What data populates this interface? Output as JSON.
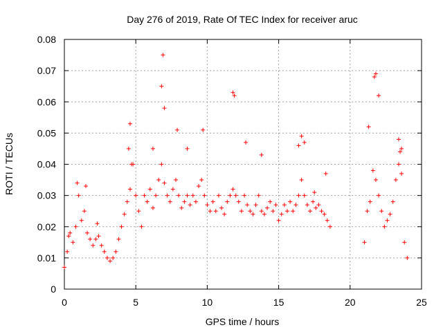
{
  "chart_data": {
    "type": "scatter",
    "title": "Day 276 of 2019, Rate Of TEC Index for receiver aruc",
    "xlabel": "GPS time / hours",
    "ylabel": "ROTI / TECUs",
    "xlim": [
      0,
      25
    ],
    "ylim": [
      0,
      0.08
    ],
    "x_ticks": [
      "0",
      "5",
      "10",
      "15",
      "20",
      "25"
    ],
    "y_ticks": [
      "0",
      "0.01",
      "0.02",
      "0.03",
      "0.04",
      "0.05",
      "0.06",
      "0.07",
      "0.08"
    ],
    "grid": true,
    "marker": "+",
    "color": "#ff0000",
    "series": [
      {
        "x": [
          0.0,
          0.2,
          0.4,
          0.6,
          0.8,
          1.0,
          1.2,
          1.4,
          1.6,
          1.8,
          2.0,
          2.2,
          2.4,
          2.6,
          2.8,
          3.0,
          3.2,
          3.4,
          3.6,
          3.8,
          4.0,
          4.2,
          4.4,
          4.6,
          4.8,
          5.0,
          5.2,
          5.4,
          5.6,
          5.8,
          6.0,
          6.2,
          6.4,
          6.6,
          6.8,
          7.0,
          7.2,
          7.4,
          7.6,
          7.8,
          8.0,
          8.2,
          8.4,
          8.6,
          8.8,
          9.0,
          9.2,
          9.4,
          9.6,
          9.8,
          10.0,
          10.2,
          10.4,
          10.6,
          10.8,
          11.0,
          11.2,
          11.4,
          11.6,
          11.8,
          12.0,
          12.2,
          12.4,
          12.6,
          12.8,
          13.0,
          13.2,
          13.4,
          13.6,
          13.8,
          14.0,
          14.2,
          14.4,
          14.6,
          14.8,
          15.0,
          15.2,
          15.4,
          15.6,
          15.8,
          16.0,
          16.2,
          16.4,
          16.6,
          16.8,
          17.0,
          17.2,
          17.4,
          17.6,
          17.8,
          18.0,
          18.2,
          18.4,
          18.6,
          21.0,
          21.2,
          21.4,
          21.6,
          21.8,
          22.0,
          22.2,
          22.4,
          22.6,
          22.8,
          23.0,
          23.2,
          23.4,
          23.6,
          23.8,
          24.0,
          0.3,
          0.9,
          1.5,
          2.3,
          4.5,
          4.6,
          4.7,
          6.2,
          6.8,
          6.9,
          7.0,
          7.9,
          8.6,
          9.7,
          11.8,
          11.9,
          12.7,
          13.8,
          16.4,
          16.6,
          16.8,
          17.5,
          18.3,
          21.3,
          21.7,
          21.8,
          22.0,
          23.4,
          23.5,
          23.6
        ],
        "y": [
          0.007,
          0.012,
          0.018,
          0.015,
          0.02,
          0.03,
          0.022,
          0.025,
          0.018,
          0.016,
          0.014,
          0.016,
          0.017,
          0.014,
          0.012,
          0.01,
          0.009,
          0.01,
          0.012,
          0.016,
          0.02,
          0.024,
          0.028,
          0.032,
          0.04,
          0.03,
          0.025,
          0.02,
          0.03,
          0.028,
          0.032,
          0.026,
          0.03,
          0.035,
          0.04,
          0.034,
          0.03,
          0.028,
          0.032,
          0.035,
          0.03,
          0.026,
          0.028,
          0.03,
          0.027,
          0.03,
          0.028,
          0.033,
          0.035,
          0.03,
          0.027,
          0.025,
          0.028,
          0.025,
          0.03,
          0.026,
          0.024,
          0.028,
          0.03,
          0.032,
          0.03,
          0.028,
          0.025,
          0.03,
          0.027,
          0.025,
          0.024,
          0.027,
          0.03,
          0.025,
          0.024,
          0.026,
          0.028,
          0.025,
          0.027,
          0.022,
          0.024,
          0.027,
          0.025,
          0.028,
          0.025,
          0.027,
          0.03,
          0.035,
          0.03,
          0.027,
          0.025,
          0.028,
          0.026,
          0.027,
          0.025,
          0.024,
          0.022,
          0.02,
          0.015,
          0.025,
          0.028,
          0.038,
          0.035,
          0.03,
          0.025,
          0.02,
          0.022,
          0.024,
          0.028,
          0.035,
          0.04,
          0.045,
          0.015,
          0.01,
          0.017,
          0.034,
          0.033,
          0.021,
          0.045,
          0.053,
          0.04,
          0.045,
          0.065,
          0.075,
          0.058,
          0.051,
          0.045,
          0.051,
          0.063,
          0.062,
          0.047,
          0.043,
          0.046,
          0.049,
          0.047,
          0.031,
          0.037,
          0.052,
          0.068,
          0.069,
          0.062,
          0.048,
          0.044,
          0.037
        ]
      }
    ]
  }
}
